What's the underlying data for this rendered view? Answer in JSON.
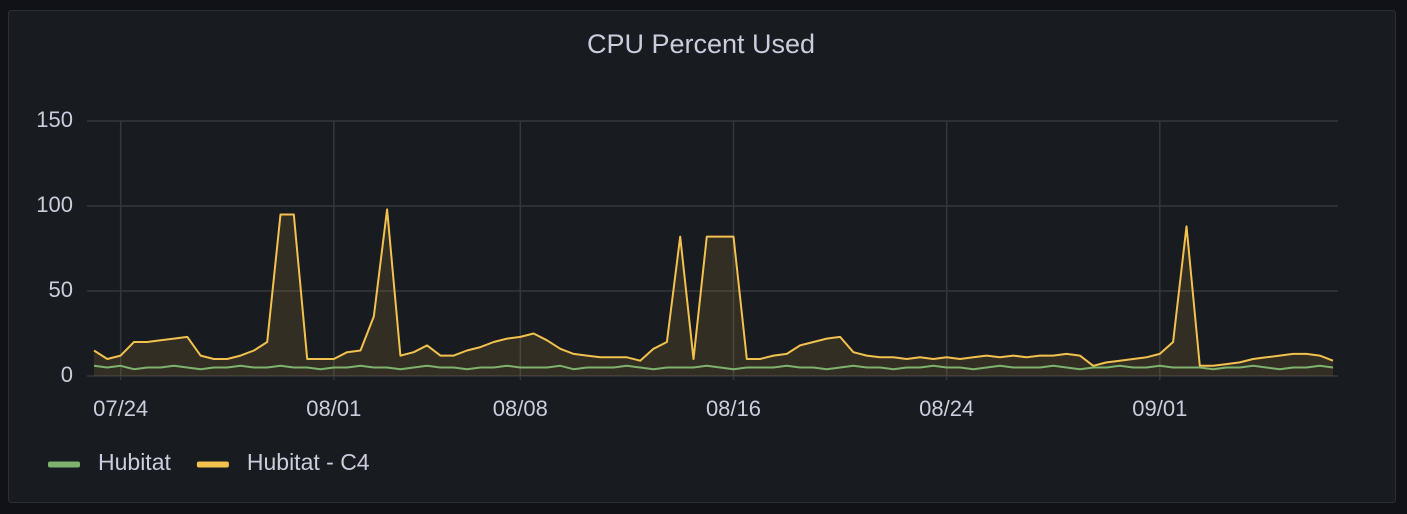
{
  "chart_data": {
    "type": "line",
    "title": "CPU Percent Used",
    "categories": [
      null,
      null,
      "07/24",
      null,
      null,
      null,
      null,
      null,
      null,
      null,
      null,
      null,
      null,
      null,
      null,
      null,
      null,
      null,
      "08/01",
      null,
      null,
      null,
      null,
      null,
      null,
      null,
      null,
      null,
      null,
      null,
      null,
      null,
      "08/08",
      null,
      null,
      null,
      null,
      null,
      null,
      null,
      null,
      null,
      null,
      null,
      null,
      null,
      null,
      null,
      "08/16",
      null,
      null,
      null,
      null,
      null,
      null,
      null,
      null,
      null,
      null,
      null,
      null,
      null,
      null,
      null,
      "08/24",
      null,
      null,
      null,
      null,
      null,
      null,
      null,
      null,
      null,
      null,
      null,
      null,
      null,
      null,
      null,
      "09/01",
      null,
      null,
      null,
      null,
      null,
      null,
      null,
      null,
      null,
      null,
      null,
      null,
      null
    ],
    "series": [
      {
        "name": "Hubitat",
        "color": "#7eb26d",
        "fill": false,
        "values": [
          6,
          5,
          6,
          4,
          5,
          5,
          6,
          5,
          4,
          5,
          5,
          6,
          5,
          5,
          6,
          5,
          5,
          4,
          5,
          5,
          6,
          5,
          5,
          4,
          5,
          6,
          5,
          5,
          4,
          5,
          5,
          6,
          5,
          5,
          5,
          6,
          4,
          5,
          5,
          5,
          6,
          5,
          4,
          5,
          5,
          5,
          6,
          5,
          4,
          5,
          5,
          5,
          6,
          5,
          5,
          4,
          5,
          6,
          5,
          5,
          4,
          5,
          5,
          6,
          5,
          5,
          4,
          5,
          6,
          5,
          5,
          5,
          6,
          5,
          4,
          5,
          5,
          6,
          5,
          5,
          6,
          5,
          5,
          5,
          4,
          5,
          5,
          6,
          5,
          4,
          5,
          5,
          6,
          5
        ]
      },
      {
        "name": "Hubitat - C4",
        "color": "#f2c14e",
        "fill": true,
        "values": [
          15,
          10,
          12,
          20,
          20,
          21,
          22,
          23,
          12,
          10,
          10,
          12,
          15,
          20,
          95,
          95,
          10,
          10,
          10,
          14,
          15,
          35,
          98,
          12,
          14,
          18,
          12,
          12,
          15,
          17,
          20,
          22,
          23,
          25,
          21,
          16,
          13,
          12,
          11,
          11,
          11,
          9,
          16,
          20,
          82,
          10,
          82,
          82,
          82,
          10,
          10,
          12,
          13,
          18,
          20,
          22,
          23,
          14,
          12,
          11,
          11,
          10,
          11,
          10,
          11,
          10,
          11,
          12,
          11,
          12,
          11,
          12,
          12,
          13,
          12,
          6,
          8,
          9,
          10,
          11,
          13,
          20,
          88,
          6,
          6,
          7,
          8,
          10,
          11,
          12,
          13,
          13,
          12,
          9
        ]
      }
    ],
    "ylim": [
      0,
      150
    ],
    "yticks": [
      0,
      50,
      100,
      150
    ],
    "grid": true,
    "legend": "bottom-left"
  }
}
